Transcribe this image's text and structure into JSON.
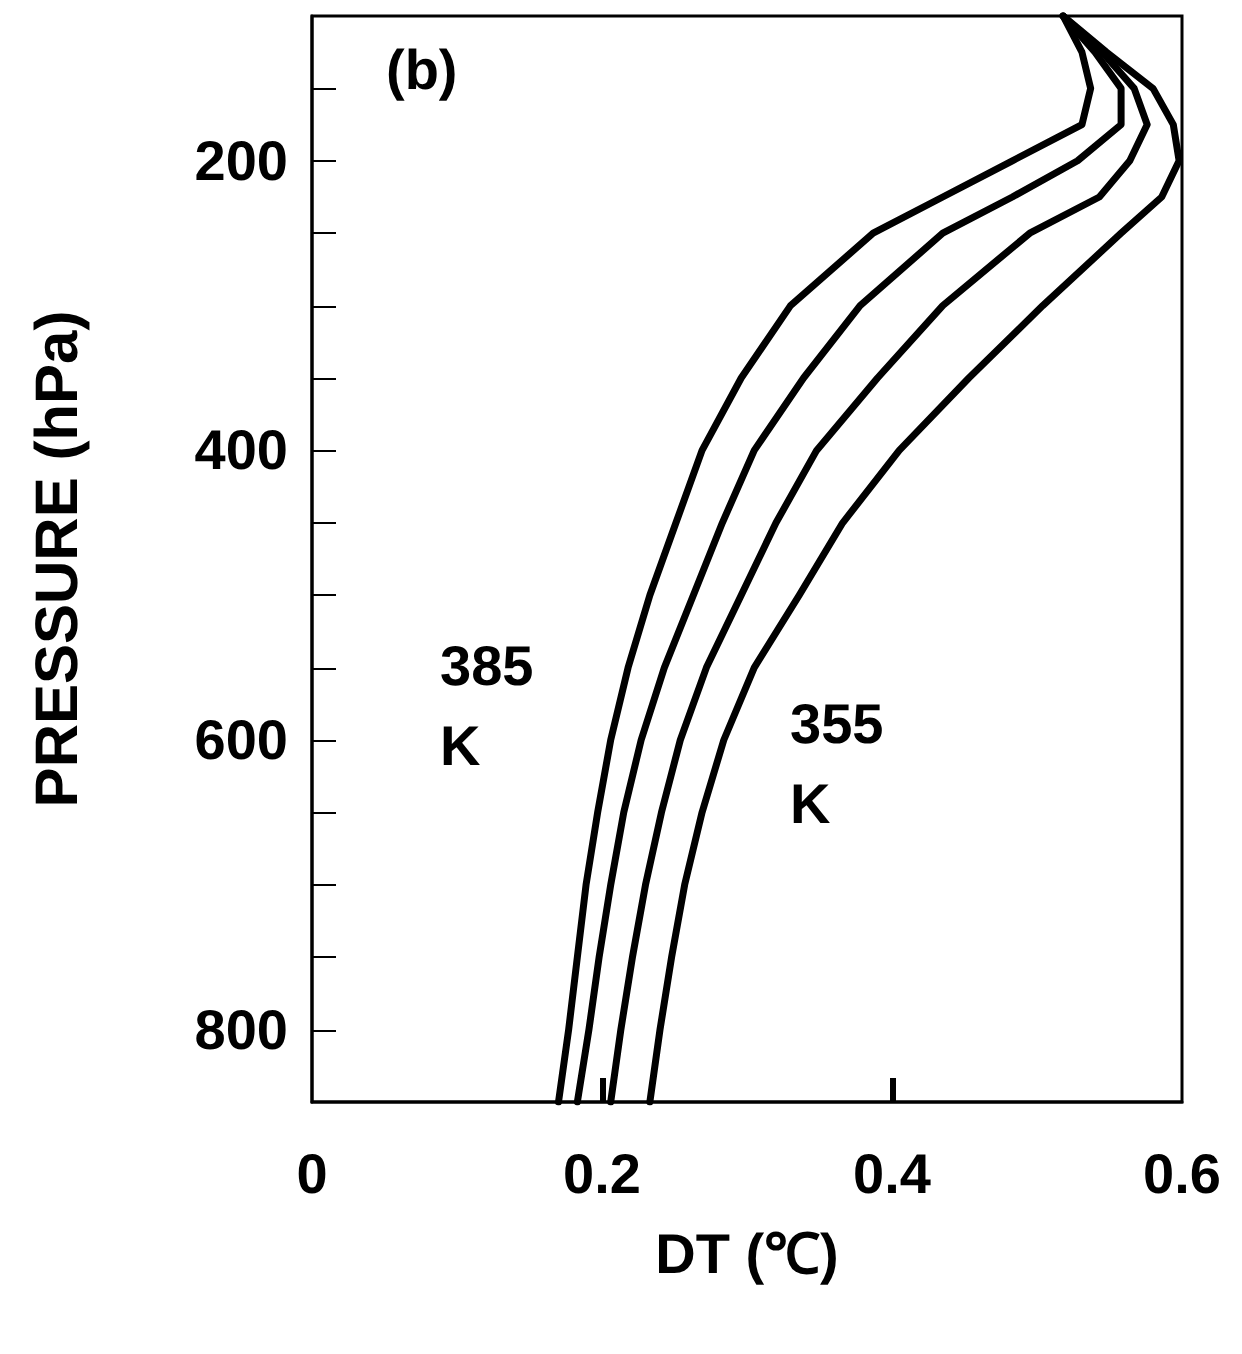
{
  "chart_data": {
    "type": "line",
    "title": "(b)",
    "xlabel": "DT (℃)",
    "ylabel": "PRESSURE (hPa)",
    "series": [
      {
        "color": "#000000",
        "values": [
          100,
          125,
          150,
          175,
          200,
          225,
          250,
          300,
          350,
          400,
          450,
          500,
          550,
          600,
          650,
          700,
          750,
          800,
          850
        ],
        "x": [
          0.518,
          0.531,
          0.537,
          0.531,
          0.483,
          0.435,
          0.387,
          0.33,
          0.296,
          0.269,
          0.251,
          0.233,
          0.218,
          0.206,
          0.197,
          0.189,
          0.183,
          0.177,
          0.17
        ]
      },
      {
        "color": "#000000",
        "values": [
          100,
          125,
          150,
          175,
          200,
          225,
          250,
          300,
          350,
          400,
          450,
          500,
          550,
          600,
          650,
          700,
          750,
          800,
          850
        ],
        "x": [
          0.518,
          0.54,
          0.558,
          0.558,
          0.528,
          0.483,
          0.435,
          0.378,
          0.339,
          0.305,
          0.283,
          0.263,
          0.243,
          0.227,
          0.215,
          0.206,
          0.198,
          0.191,
          0.183
        ]
      },
      {
        "color": "#000000",
        "values": [
          100,
          125,
          150,
          175,
          200,
          225,
          250,
          300,
          350,
          400,
          450,
          500,
          550,
          600,
          650,
          700,
          750,
          800,
          850
        ],
        "x": [
          0.518,
          0.545,
          0.567,
          0.576,
          0.564,
          0.543,
          0.495,
          0.435,
          0.39,
          0.348,
          0.32,
          0.296,
          0.272,
          0.254,
          0.241,
          0.23,
          0.221,
          0.213,
          0.206
        ]
      },
      {
        "color": "#000000",
        "values": [
          100,
          125,
          150,
          175,
          200,
          225,
          250,
          300,
          350,
          400,
          450,
          500,
          550,
          600,
          650,
          700,
          750,
          800,
          850
        ],
        "x": [
          0.518,
          0.548,
          0.58,
          0.594,
          0.598,
          0.586,
          0.558,
          0.504,
          0.453,
          0.405,
          0.366,
          0.336,
          0.305,
          0.284,
          0.269,
          0.257,
          0.248,
          0.24,
          0.233
        ]
      }
    ],
    "annotations": [
      "385 K",
      "355 K"
    ],
    "xlim": [
      0,
      0.6
    ],
    "xticks": [
      0,
      0.2,
      0.4,
      0.6
    ],
    "ylim": [
      850,
      100
    ],
    "yticks": [
      {
        "value": 150,
        "label": null
      },
      200,
      {
        "value": 250,
        "label": null
      },
      {
        "value": 300,
        "label": null
      },
      {
        "value": 350,
        "label": null
      },
      400,
      {
        "value": 450,
        "label": null
      },
      {
        "value": 500,
        "label": null
      },
      {
        "value": 550,
        "label": null
      },
      600,
      {
        "value": 650,
        "label": null
      },
      {
        "value": 700,
        "label": null
      },
      {
        "value": 750,
        "label": null
      },
      800
    ],
    "grid": false,
    "marker": "none",
    "line_style": "solid"
  }
}
